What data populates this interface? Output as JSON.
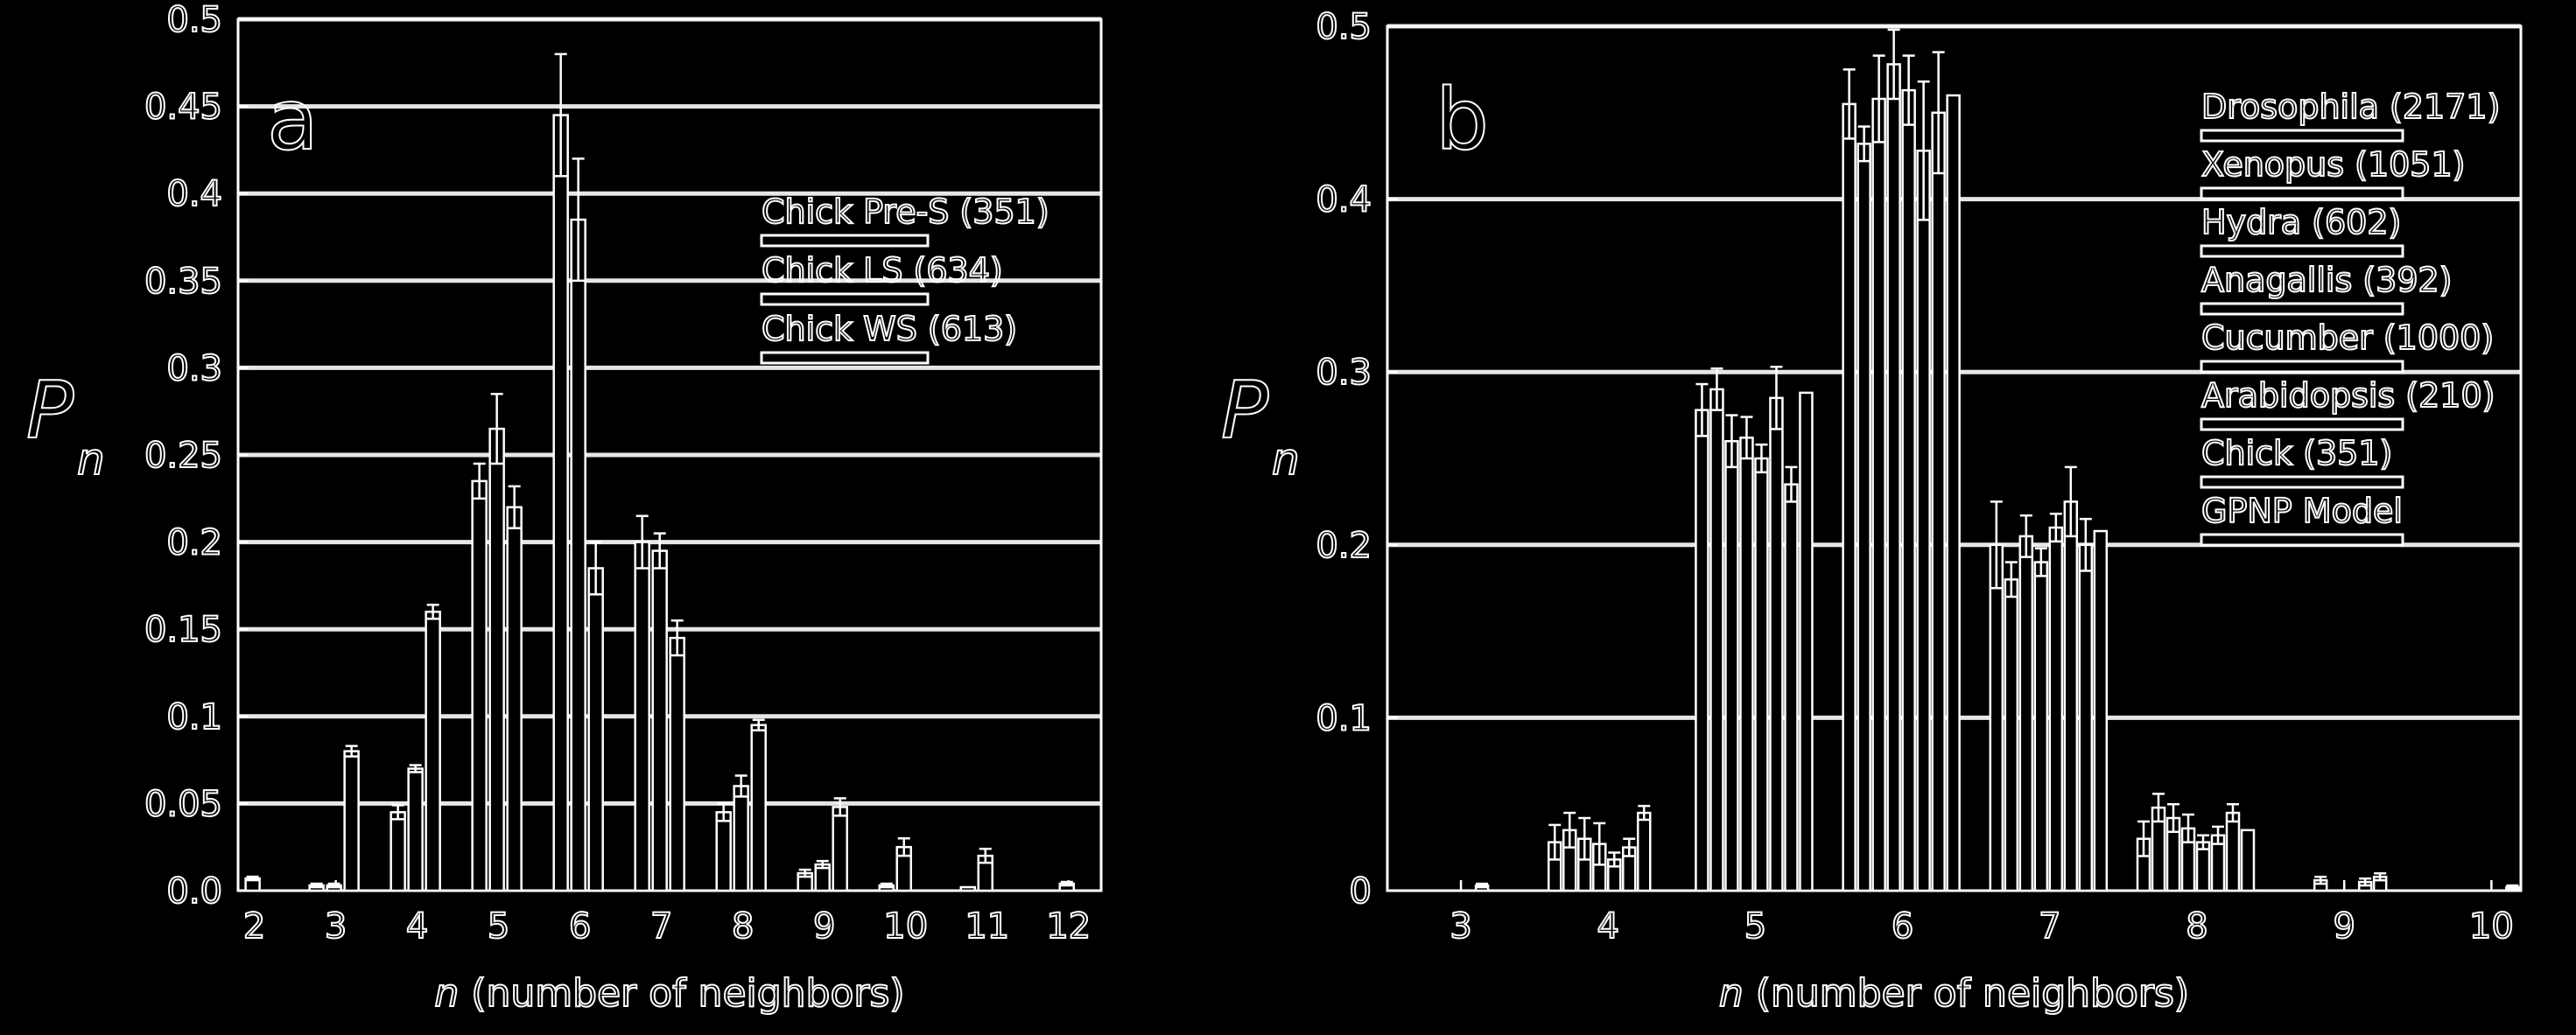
{
  "chart_data": [
    {
      "type": "bar",
      "panel_label": "a",
      "ylabel_symbol": "P",
      "ylabel_subscript": "n",
      "xlabel_var": "n",
      "xlabel_text": " (number of  neighbors)",
      "ylim": [
        0,
        0.5
      ],
      "xlim": [
        1.8,
        12.4
      ],
      "yticks": [
        0,
        0.05,
        0.1,
        0.15,
        0.2,
        0.25,
        0.3,
        0.35,
        0.4,
        0.45,
        0.5
      ],
      "ytick_labels": [
        "0.0",
        "0.05",
        "0.1",
        "0.15",
        "0.2",
        "0.25",
        "0.3",
        "0.35",
        "0.4",
        "0.45",
        "0.5"
      ],
      "xticks": [
        2,
        3,
        4,
        5,
        6,
        7,
        8,
        9,
        10,
        11,
        12
      ],
      "xtick_labels": [
        "2",
        "3",
        "4",
        "5",
        "6",
        "7",
        "8",
        "9",
        "10",
        "11",
        "12"
      ],
      "grid": true,
      "legend_position": "top-right",
      "categories": [
        "2",
        "3",
        "4",
        "5",
        "6",
        "7",
        "8",
        "9",
        "10",
        "11",
        "12"
      ],
      "series": [
        {
          "name": "Chick Pre-S (351)",
          "values": [
            0.0,
            0.003,
            0.045,
            0.235,
            0.445,
            0.2,
            0.045,
            0.01,
            0.003,
            0.002,
            0.0
          ],
          "errors": [
            0,
            0.001,
            0.004,
            0.01,
            0.035,
            0.015,
            0.005,
            0.002,
            0.001,
            0,
            0
          ]
        },
        {
          "name": "Chick LS (634)",
          "values": [
            0.007,
            0.003,
            0.07,
            0.265,
            0.385,
            0.195,
            0.06,
            0.015,
            0.025,
            0.02,
            0.004
          ],
          "errors": [
            0.001,
            0.001,
            0.002,
            0.02,
            0.035,
            0.01,
            0.006,
            0.002,
            0.005,
            0.004,
            0.001
          ],
          "offset_only": true
        },
        {
          "name": "Chick WS (613)",
          "values": [
            0.0,
            0.08,
            0.16,
            0.22,
            0.185,
            0.145,
            0.095,
            0.048,
            0.0,
            0.0,
            0.0
          ],
          "errors": [
            0,
            0.003,
            0.004,
            0.012,
            0.015,
            0.01,
            0.003,
            0.005,
            0,
            0,
            0
          ]
        }
      ]
    },
    {
      "type": "bar",
      "panel_label": "b",
      "ylabel_symbol": "P",
      "ylabel_subscript": "n",
      "xlabel_var": "n",
      "xlabel_text": " (number of  neighbors)",
      "ylim": [
        0,
        0.5
      ],
      "xlim": [
        2.5,
        10.2
      ],
      "yticks": [
        0,
        0.1,
        0.2,
        0.3,
        0.4,
        0.5
      ],
      "ytick_labels": [
        "0",
        "0.1",
        "0.2",
        "0.3",
        "0.4",
        "0.5"
      ],
      "xticks": [
        3,
        4,
        5,
        6,
        7,
        8,
        9,
        10
      ],
      "xtick_labels": [
        "3",
        "4",
        "5",
        "6",
        "7",
        "8",
        "9",
        "10"
      ],
      "grid": true,
      "legend_position": "top-right",
      "categories": [
        "3",
        "4",
        "5",
        "6",
        "7",
        "8",
        "9",
        "10"
      ],
      "series": [
        {
          "name": "Drosophila (2171)",
          "values": [
            0.0,
            0.028,
            0.278,
            0.455,
            0.2,
            0.03,
            0.0,
            0.0
          ],
          "errors": [
            0,
            0.01,
            0.015,
            0.02,
            0.025,
            0.01,
            0,
            0
          ]
        },
        {
          "name": "Xenopus (1051)",
          "values": [
            0.0,
            0.035,
            0.29,
            0.432,
            0.18,
            0.048,
            0.0,
            0.0
          ],
          "errors": [
            0,
            0.01,
            0.012,
            0.01,
            0.01,
            0.008,
            0,
            0
          ]
        },
        {
          "name": "Hydra (602)",
          "values": [
            0.0,
            0.03,
            0.26,
            0.458,
            0.205,
            0.042,
            0.006,
            0.0
          ],
          "errors": [
            0,
            0.012,
            0.015,
            0.025,
            0.012,
            0.008,
            0.002,
            0
          ]
        },
        {
          "name": "Anagallis (392)",
          "values": [
            0.0,
            0.027,
            0.262,
            0.478,
            0.19,
            0.036,
            0.0,
            0.0
          ],
          "errors": [
            0,
            0.012,
            0.012,
            0.02,
            0.008,
            0.008,
            0,
            0
          ]
        },
        {
          "name": "Cucumber (1000)",
          "values": [
            0.0,
            0.018,
            0.25,
            0.463,
            0.21,
            0.028,
            0.0,
            0.0
          ],
          "errors": [
            0,
            0.004,
            0.008,
            0.02,
            0.008,
            0.004,
            0,
            0
          ]
        },
        {
          "name": "Arabidopsis (210)",
          "values": [
            0.003,
            0.025,
            0.285,
            0.428,
            0.225,
            0.032,
            0.005,
            0.002
          ],
          "errors": [
            0.001,
            0.005,
            0.018,
            0.04,
            0.02,
            0.005,
            0.002,
            0.001
          ]
        },
        {
          "name": "Chick (351)",
          "values": [
            0.0,
            0.045,
            0.235,
            0.45,
            0.2,
            0.045,
            0.008,
            0.0
          ],
          "errors": [
            0,
            0.004,
            0.01,
            0.035,
            0.015,
            0.005,
            0.002,
            0
          ]
        },
        {
          "name": "GPNP Model",
          "values": [
            0.0,
            0.0,
            0.288,
            0.46,
            0.208,
            0.035,
            0.0,
            0.0
          ],
          "errors": [
            0,
            0,
            0,
            0,
            0,
            0,
            0,
            0
          ]
        }
      ]
    }
  ]
}
